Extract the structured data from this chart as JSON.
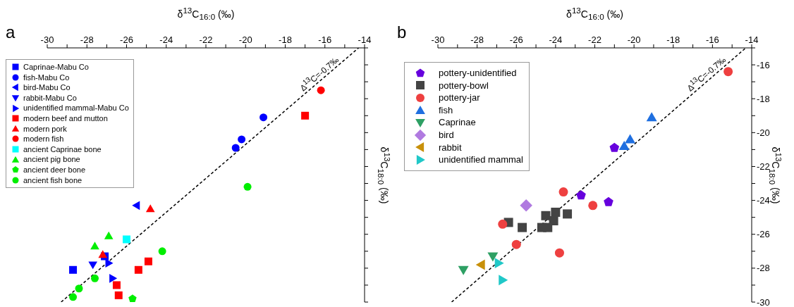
{
  "chart_data": [
    {
      "type": "scatter",
      "title": "a",
      "xlabel": "δ$^{13}$C$_{16:0}$ (‰)",
      "ylabel": "δ$^{13}$C$_{18:0}$ (‰)",
      "xlim": [
        -30,
        -14
      ],
      "ylim": [
        -30,
        -15
      ],
      "xticks": [
        -30,
        {
          "value": -29,
          "label": null
        },
        -28,
        {
          "value": -27,
          "label": null
        },
        -26,
        {
          "value": -25,
          "label": null
        },
        -24,
        {
          "value": -23,
          "label": null
        },
        -22,
        {
          "value": -21,
          "label": null
        },
        -20,
        {
          "value": -19,
          "label": null
        },
        -18,
        {
          "value": -17,
          "label": null
        },
        -16,
        {
          "value": -15,
          "label": null
        },
        -14
      ],
      "yticks": [
        -30,
        {
          "value": -29,
          "label": null
        },
        -28,
        {
          "value": -27,
          "label": null
        },
        -26,
        {
          "value": -25,
          "label": null
        },
        -24,
        {
          "value": -23,
          "label": null
        },
        -22,
        {
          "value": -21,
          "label": null
        },
        -20,
        {
          "value": -19,
          "label": null
        },
        -18,
        {
          "value": -17,
          "label": null
        },
        -16,
        {
          "value": -15,
          "label": null
        }
      ],
      "tick_labels": "x",
      "grid": false,
      "legend": "top left",
      "annotations": [
        "Δ$^{13}$C=-0.7‰"
      ],
      "series": [
        {
          "name": "Caprinae-Mabu Co",
          "color": "#0000ff",
          "marker": "square",
          "x": [
            -28.7,
            -27.1
          ],
          "values": [
            -28.1,
            -27.3
          ]
        },
        {
          "name": "fish-Mabu Co",
          "color": "#0000ff",
          "marker": "circle",
          "x": [
            -19.1,
            -20.2,
            -20.5
          ],
          "values": [
            -19.1,
            -20.4,
            -20.9
          ]
        },
        {
          "name": "bird-Mabu Co",
          "color": "#0000ff",
          "marker": "triangle-left",
          "x": [
            -25.5
          ],
          "values": [
            -24.3
          ]
        },
        {
          "name": "rabbit-Mabu Co",
          "color": "#0000ff",
          "marker": "triangle-down",
          "x": [
            -27.7
          ],
          "values": [
            -27.8
          ]
        },
        {
          "name": "unidentified mammal-Mabu Co",
          "color": "#0000ff",
          "marker": "triangle-right",
          "x": [
            -26.9,
            -26.7
          ],
          "values": [
            -27.7,
            -28.6
          ]
        },
        {
          "name": "modern beef and mutton",
          "color": "#ff0000",
          "marker": "square",
          "x": [
            -17.0,
            -24.9,
            -25.4,
            -26.5,
            -26.4
          ],
          "values": [
            -19.0,
            -27.6,
            -28.1,
            -29.0,
            -29.6
          ]
        },
        {
          "name": "modern pork",
          "color": "#ff0000",
          "marker": "triangle",
          "x": [
            -24.8,
            -27.2
          ],
          "values": [
            -24.5,
            -27.2
          ]
        },
        {
          "name": "modern fish",
          "color": "#ff0000",
          "marker": "circle",
          "x": [
            -16.2
          ],
          "values": [
            -17.5
          ]
        },
        {
          "name": "ancient Caprinae bone",
          "color": "#00ffff",
          "marker": "square",
          "x": [
            -26.0
          ],
          "values": [
            -26.3
          ]
        },
        {
          "name": "ancient pig bone",
          "color": "#00ee00",
          "marker": "triangle",
          "x": [
            -26.9,
            -27.6
          ],
          "values": [
            -26.1,
            -26.7
          ]
        },
        {
          "name": "ancient deer bone",
          "color": "#00ee00",
          "x": [
            -25.7
          ],
          "values": [
            -29.8
          ]
        },
        {
          "name": "ancient fish bone",
          "color": "#00ee00",
          "marker": "circle",
          "x": [
            -19.9,
            -24.2,
            -27.6,
            -28.4,
            -28.7
          ],
          "values": [
            -23.2,
            -27.0,
            -28.6,
            -29.2,
            -29.7
          ]
        },
        {
          "type": "line",
          "color": "#000000",
          "line_style": "dashed",
          "marker": "none",
          "x": [
            -29.3,
            -14.3
          ],
          "values": [
            -30,
            -15
          ]
        }
      ]
    },
    {
      "type": "scatter",
      "title": "b",
      "xlabel": "δ$^{13}$C$_{16:0}$ (‰)",
      "ylabel": "δ$^{13}$C$_{18:0}$ (‰)",
      "xlim": [
        -30,
        -14
      ],
      "ylim": [
        -30,
        -15
      ],
      "xticks": [
        -30,
        {
          "value": -29,
          "label": null
        },
        -28,
        {
          "value": -27,
          "label": null
        },
        -26,
        {
          "value": -25,
          "label": null
        },
        -24,
        {
          "value": -23,
          "label": null
        },
        -22,
        {
          "value": -21,
          "label": null
        },
        -20,
        {
          "value": -19,
          "label": null
        },
        -18,
        {
          "value": -17,
          "label": null
        },
        -16,
        {
          "value": -15,
          "label": null
        },
        -14
      ],
      "yticks": [
        -30,
        {
          "value": -29,
          "label": null
        },
        -28,
        {
          "value": -27,
          "label": null
        },
        -26,
        {
          "value": -25,
          "label": null
        },
        -24,
        {
          "value": -23,
          "label": null
        },
        -22,
        {
          "value": -21,
          "label": null
        },
        -20,
        {
          "value": -19,
          "label": null
        },
        -18,
        {
          "value": -17,
          "label": null
        },
        -16,
        {
          "value": -15,
          "label": null
        }
      ],
      "grid": false,
      "legend": "top left",
      "annotations": [
        "Δ$^{13}$C=-0.7‰"
      ],
      "series": [
        {
          "name": "pottery-unidentified",
          "color": "#6600dd",
          "x": [
            -21.0,
            -22.7,
            -21.3
          ],
          "values": [
            -20.9,
            -23.7,
            -24.1
          ]
        },
        {
          "name": "pottery-bowl",
          "color": "#444444",
          "marker": "square",
          "x": [
            -26.4,
            -25.7,
            -24.7,
            -24.4,
            -24.5,
            -24.0,
            -24.1,
            -23.4
          ],
          "values": [
            -25.3,
            -25.6,
            -25.6,
            -25.6,
            -24.9,
            -24.7,
            -25.2,
            -24.8
          ]
        },
        {
          "name": "pottery-jar",
          "color": "#ee4040",
          "marker": "circle",
          "x": [
            -15.2,
            -23.6,
            -22.1,
            -26.7,
            -26.0,
            -23.8
          ],
          "values": [
            -16.4,
            -23.5,
            -24.3,
            -25.4,
            -26.6,
            -27.1
          ]
        },
        {
          "name": "fish",
          "color": "#1f6fe0",
          "marker": "triangle",
          "x": [
            -19.1,
            -20.2,
            -20.5
          ],
          "values": [
            -19.1,
            -20.4,
            -20.8
          ]
        },
        {
          "name": "Caprinae",
          "color": "#2ea064",
          "marker": "triangle-down",
          "x": [
            -28.7,
            -27.2
          ],
          "values": [
            -28.1,
            -27.3
          ]
        },
        {
          "name": "bird",
          "color": "#b07ae0",
          "marker": "diamond",
          "x": [
            -25.5
          ],
          "values": [
            -24.3
          ]
        },
        {
          "name": "rabbit",
          "color": "#c8900a",
          "marker": "triangle-left",
          "x": [
            -27.8
          ],
          "values": [
            -27.8
          ]
        },
        {
          "name": "unidentified mammal",
          "color": "#20c8c8",
          "marker": "triangle-right",
          "x": [
            -26.9,
            -26.7
          ],
          "values": [
            -27.7,
            -28.7
          ]
        },
        {
          "type": "line",
          "color": "#000000",
          "line_style": "dashed",
          "marker": "none",
          "x": [
            -29.3,
            -14.3
          ],
          "values": [
            -30,
            -15
          ]
        }
      ]
    }
  ]
}
